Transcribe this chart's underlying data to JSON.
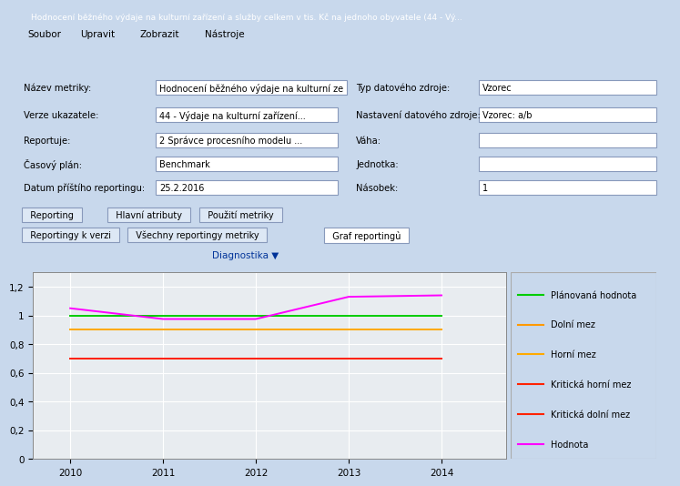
{
  "x": [
    2010,
    2011,
    2012,
    2013,
    2014
  ],
  "planned": [
    1.0,
    1.0,
    1.0,
    1.0,
    1.0
  ],
  "dolni_mez": [
    0.9,
    0.9,
    0.9,
    0.9,
    0.9
  ],
  "horni_mez": [
    0.9,
    0.9,
    0.9,
    0.9,
    0.9
  ],
  "krit_horni": [
    0.7,
    0.7,
    0.7,
    0.7,
    0.7
  ],
  "krit_dolni": [
    0.7,
    0.7,
    0.7,
    0.7,
    0.7
  ],
  "hodnota": [
    1.05,
    0.975,
    0.975,
    1.13,
    1.14
  ],
  "colors": {
    "planned": "#00cc00",
    "dolni_mez": "#ff9900",
    "horni_mez": "#ffaa00",
    "krit_horni": "#ff2200",
    "krit_dolni": "#ff2200",
    "hodnota": "#ff00ff"
  },
  "legend_labels": [
    "Plánovaná hodnota",
    "Dolní mez",
    "Horní mez",
    "Kritická horní mez",
    "Kritická dolní mez",
    "Hodnota"
  ],
  "ylim": [
    0,
    1.3
  ],
  "yticks": [
    0,
    0.2,
    0.4,
    0.6,
    0.8,
    1.0,
    1.2
  ],
  "ytick_labels": [
    "0",
    "0,2",
    "0,4",
    "0,6",
    "0,8",
    "1",
    "1,2"
  ],
  "plot_bg": "#e8ecf0",
  "outer_bg": "#c8d8ec",
  "title_bg": "#4a7ab5",
  "menu_bg": "#dce6f0",
  "toolbar_bg": "#c8d8ec",
  "form_bg": "#dce8f5",
  "tab_bg": "#c8d8ec",
  "chart_outer_bg": "#dce8f5",
  "title_text": "Hodnocení běžného výdaje na kulturní zařízení a služby celkem v tis. Kč na jednoho obyvatele (44 - Vý...",
  "form_rows": [
    {
      "label": "Název metriky:",
      "value": "Hodnocení běžného výdaje na kulturní ze",
      "label2": "Typ datového zdroje:",
      "value2": "Vzorec"
    },
    {
      "label": "Verze ukazatele:",
      "value": "44 - Výdaje na kulturní zařízení...",
      "label2": "Nastavení datového zdroje:",
      "value2": "Vzorec: a/b"
    },
    {
      "label": "Reportuje:",
      "value": "2 Správce procesního modelu ...",
      "label2": "Váha:",
      "value2": ""
    },
    {
      "label": "Časový plán:",
      "value": "Benchmark",
      "label2": "Jednotka:",
      "value2": ""
    },
    {
      "label": "Datum příštího reportingu:",
      "value": "25.2.2016",
      "label2": "Násobek:",
      "value2": "1"
    }
  ],
  "tab1_labels": [
    "Reporting",
    "Hlavní atributy",
    "Použití metriky"
  ],
  "tab2_labels": [
    "Reportingy k verzi",
    "Všechny reportingy metriky",
    "Graf reportingù"
  ],
  "diag_label": "Diagnostika"
}
